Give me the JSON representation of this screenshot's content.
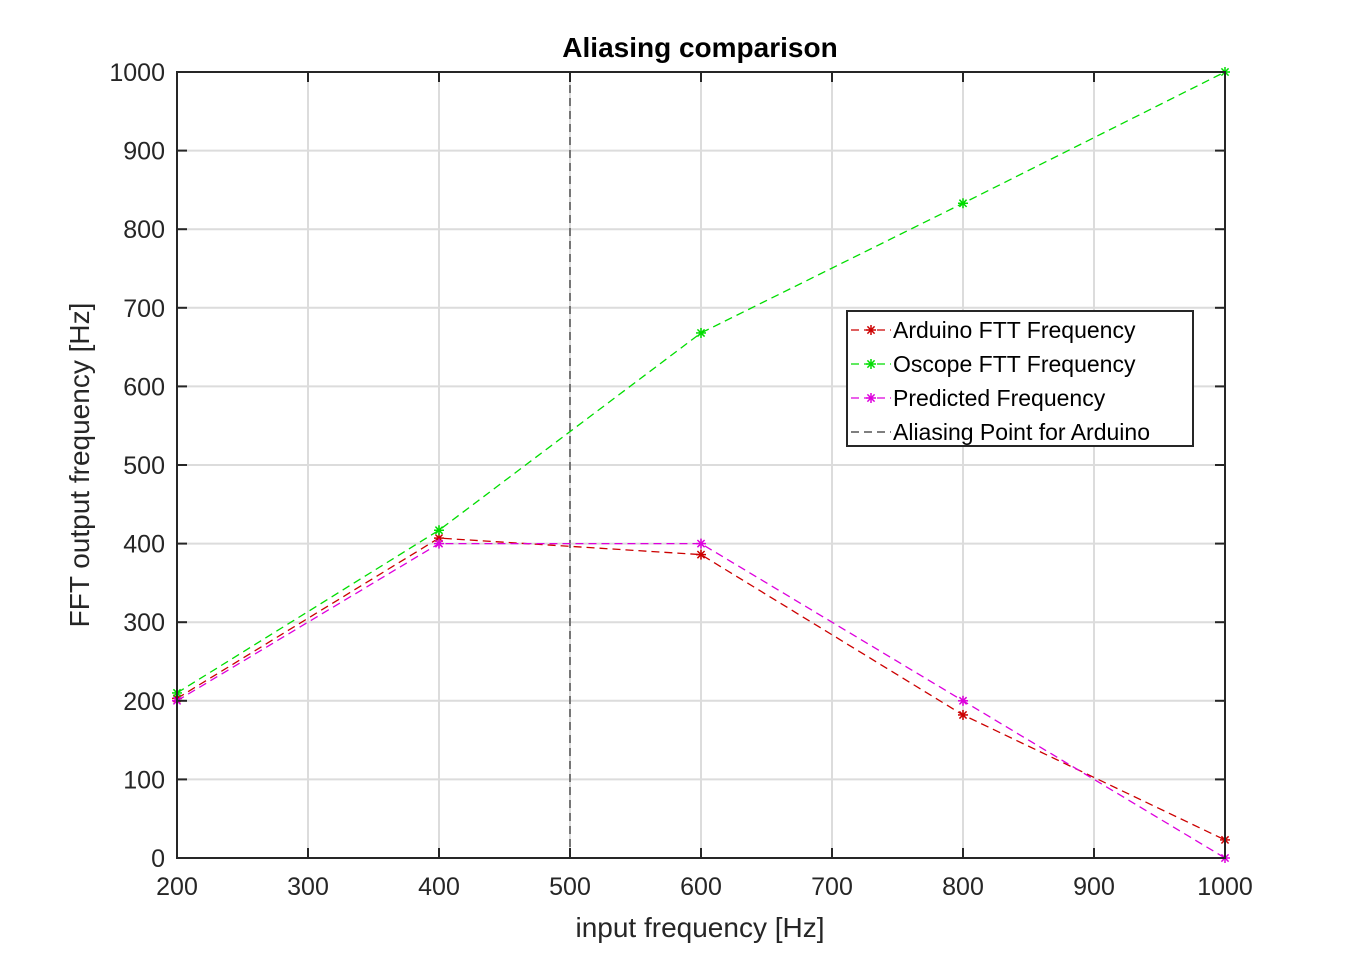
{
  "chart_data": {
    "type": "line",
    "title": "Aliasing comparison",
    "xlabel": "input frequency [Hz]",
    "ylabel": "FFT output frequency [Hz]",
    "xlim": [
      200,
      1000
    ],
    "ylim": [
      0,
      1000
    ],
    "xticks": [
      "200",
      "300",
      "400",
      "500",
      "600",
      "700",
      "800",
      "900",
      "1000"
    ],
    "yticks": [
      "0",
      "100",
      "200",
      "300",
      "400",
      "500",
      "600",
      "700",
      "800",
      "900",
      "1000"
    ],
    "grid": true,
    "legend_position": "top-right",
    "series": [
      {
        "name": "Arduino FTT Frequency",
        "color": "#cc0000",
        "marker": "asterisk",
        "line": "dashed",
        "x": [
          200,
          400,
          600,
          800,
          1000
        ],
        "y": [
          203,
          407,
          386,
          182,
          23
        ]
      },
      {
        "name": "Oscope FTT Frequency",
        "color": "#00dd00",
        "marker": "asterisk",
        "line": "dashed",
        "x": [
          200,
          400,
          600,
          800,
          1000
        ],
        "y": [
          210,
          417,
          668,
          833,
          1000
        ]
      },
      {
        "name": "Predicted Frequency",
        "color": "#dd00dd",
        "marker": "asterisk",
        "line": "dashed",
        "x": [
          200,
          400,
          600,
          800,
          1000
        ],
        "y": [
          200,
          400,
          400,
          200,
          0
        ]
      }
    ],
    "reference_lines": [
      {
        "name": "Aliasing Point for Arduino",
        "color": "#333333",
        "line": "dashed",
        "x": 500
      }
    ]
  }
}
